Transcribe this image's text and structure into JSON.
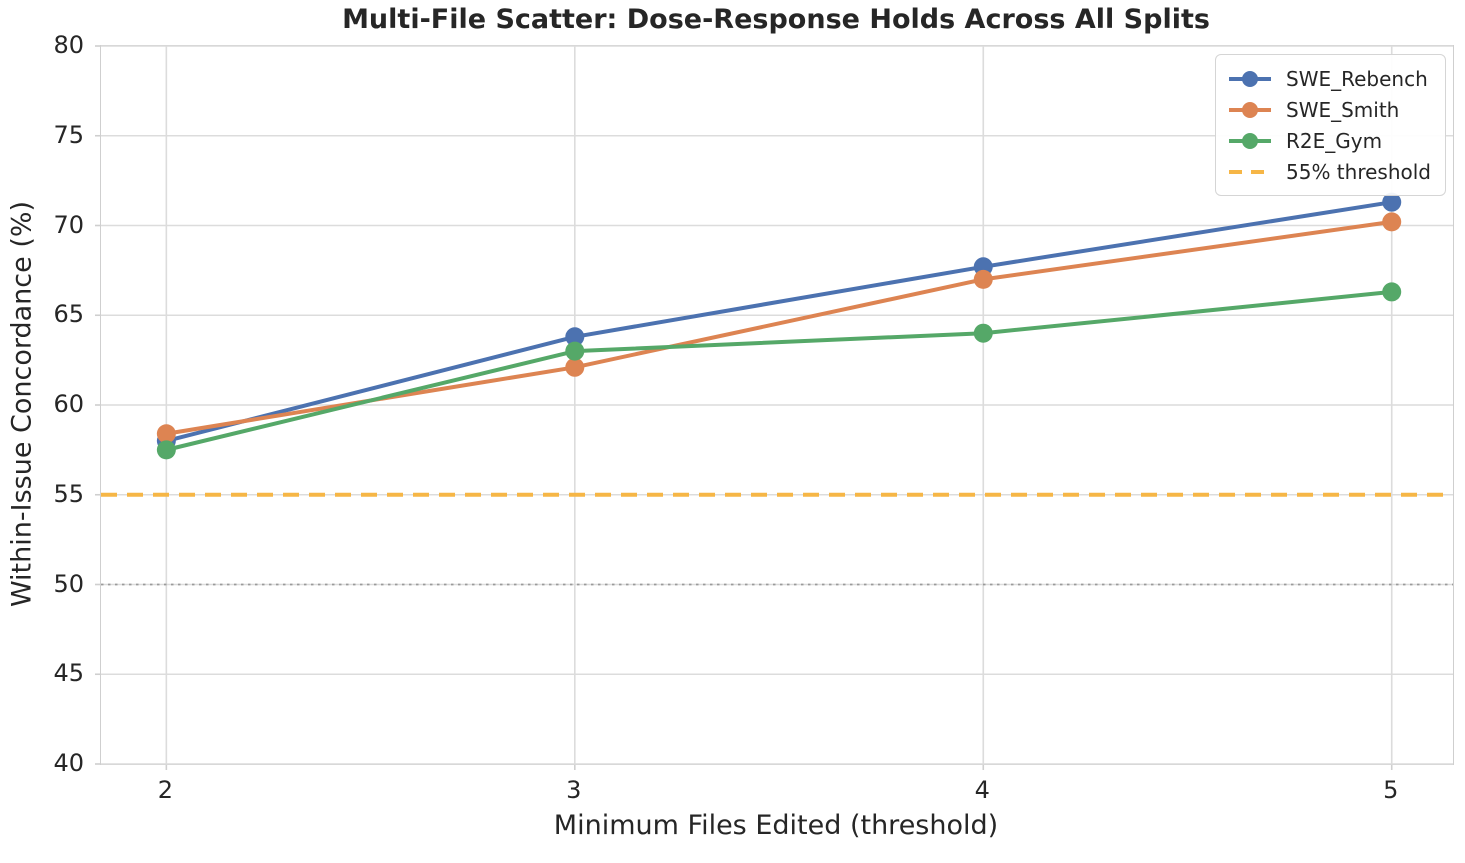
{
  "chart_data": {
    "type": "line",
    "title": "Multi-File Scatter: Dose-Response Holds Across All Splits",
    "xlabel": "Minimum Files Edited (threshold)",
    "ylabel": "Within-Issue Concordance (%)",
    "x": [
      2,
      3,
      4,
      5
    ],
    "xticks": [
      2,
      3,
      4,
      5
    ],
    "yticks": [
      40,
      45,
      50,
      55,
      60,
      65,
      70,
      75,
      80
    ],
    "xlim": [
      1.84,
      5.15
    ],
    "ylim": [
      40,
      80
    ],
    "grid": true,
    "legend_position": "upper right",
    "series": [
      {
        "name": "SWE_Rebench",
        "color": "#4C72B0",
        "values": [
          58.0,
          63.8,
          67.7,
          71.3
        ]
      },
      {
        "name": "SWE_Smith",
        "color": "#DD8452",
        "values": [
          58.4,
          62.1,
          67.0,
          70.2
        ]
      },
      {
        "name": "R2E_Gym",
        "color": "#55A868",
        "values": [
          57.5,
          63.0,
          64.0,
          66.3
        ]
      }
    ],
    "reference_lines": [
      {
        "label": "55% threshold",
        "y": 55,
        "color": "#F6B646",
        "style": "dashed",
        "in_legend": true
      },
      {
        "y": 50,
        "color": "#9A9A9A",
        "style": "dotted",
        "in_legend": false
      }
    ],
    "colors": {
      "grid": "#DCDCDC",
      "spine": "#CFCFCF",
      "text": "#262626"
    }
  }
}
